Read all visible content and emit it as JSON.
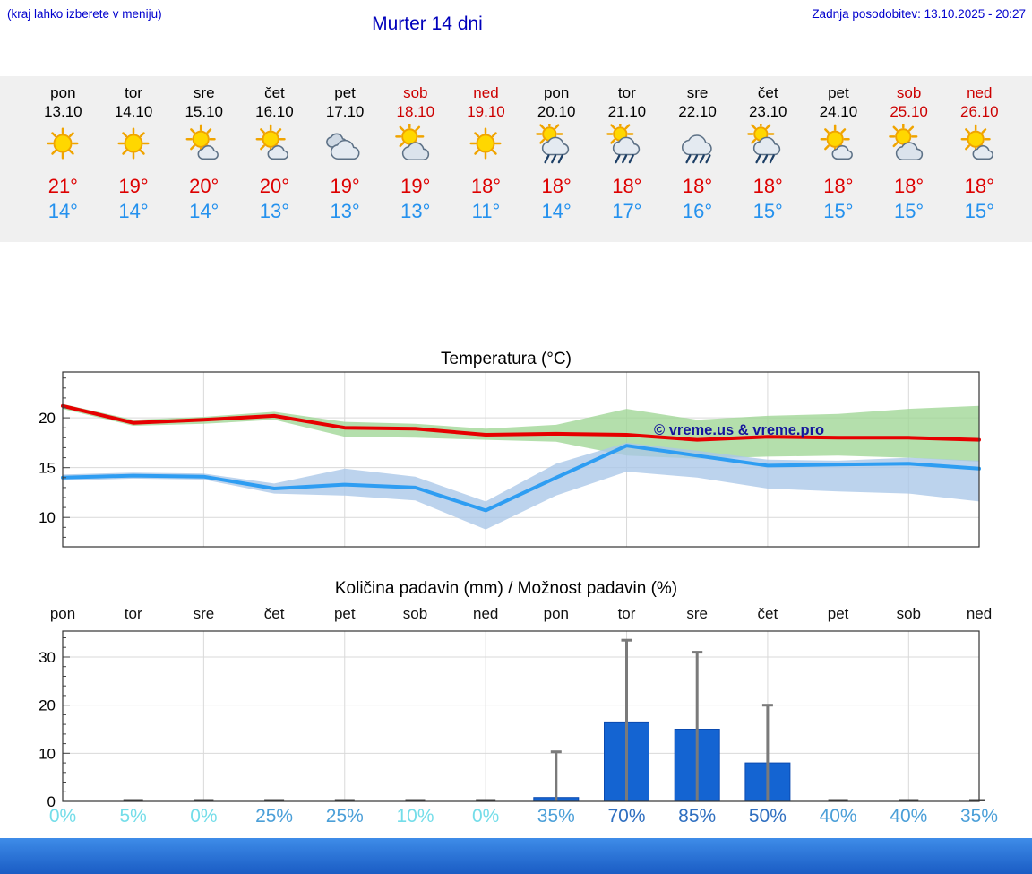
{
  "header": {
    "hint": "(kraj lahko izberete v meniju)",
    "title": "Murter 14 dni",
    "updated": "Zadnja posodobitev: 13.10.2025 - 20:27"
  },
  "forecast": {
    "days": [
      {
        "day": "pon",
        "date": "13.10",
        "weekend": false,
        "icon": "sun",
        "tmax": "21°",
        "tmin": "14°"
      },
      {
        "day": "tor",
        "date": "14.10",
        "weekend": false,
        "icon": "sun",
        "tmax": "19°",
        "tmin": "14°"
      },
      {
        "day": "sre",
        "date": "15.10",
        "weekend": false,
        "icon": "sun-small-cloud",
        "tmax": "20°",
        "tmin": "14°"
      },
      {
        "day": "čet",
        "date": "16.10",
        "weekend": false,
        "icon": "sun-small-cloud",
        "tmax": "20°",
        "tmin": "13°"
      },
      {
        "day": "pet",
        "date": "17.10",
        "weekend": false,
        "icon": "cloud",
        "tmax": "19°",
        "tmin": "13°"
      },
      {
        "day": "sob",
        "date": "18.10",
        "weekend": true,
        "icon": "sun-cloud",
        "tmax": "19°",
        "tmin": "13°"
      },
      {
        "day": "ned",
        "date": "19.10",
        "weekend": true,
        "icon": "sun",
        "tmax": "18°",
        "tmin": "11°"
      },
      {
        "day": "pon",
        "date": "20.10",
        "weekend": false,
        "icon": "sun-cloud-rain",
        "tmax": "18°",
        "tmin": "14°"
      },
      {
        "day": "tor",
        "date": "21.10",
        "weekend": false,
        "icon": "sun-cloud-rain",
        "tmax": "18°",
        "tmin": "17°"
      },
      {
        "day": "sre",
        "date": "22.10",
        "weekend": false,
        "icon": "cloud-rain",
        "tmax": "18°",
        "tmin": "16°"
      },
      {
        "day": "čet",
        "date": "23.10",
        "weekend": false,
        "icon": "sun-cloud-rain",
        "tmax": "18°",
        "tmin": "15°"
      },
      {
        "day": "pet",
        "date": "24.10",
        "weekend": false,
        "icon": "sun-small-cloud",
        "tmax": "18°",
        "tmin": "15°"
      },
      {
        "day": "sob",
        "date": "25.10",
        "weekend": true,
        "icon": "sun-cloud",
        "tmax": "18°",
        "tmin": "15°"
      },
      {
        "day": "ned",
        "date": "26.10",
        "weekend": true,
        "icon": "sun-small-cloud",
        "tmax": "18°",
        "tmin": "15°"
      }
    ]
  },
  "chart_data": [
    {
      "type": "line",
      "title": "Temperatura (°C)",
      "categories": [
        "pon",
        "tor",
        "sre",
        "čet",
        "pet",
        "sob",
        "ned",
        "pon",
        "tor",
        "sre",
        "čet",
        "pet",
        "sob",
        "ned"
      ],
      "ylim": [
        7.05,
        24.6
      ],
      "yticks": [
        10,
        15,
        20
      ],
      "grid_day_indices": [
        2,
        4,
        6,
        8,
        10,
        12
      ],
      "watermark": "© vreme.us & vreme.pro",
      "watermark_color": "#16169c",
      "series": [
        {
          "name": "max",
          "color": "#e60000",
          "values": [
            21.2,
            19.5,
            19.8,
            20.2,
            19.0,
            18.9,
            18.3,
            18.4,
            18.3,
            17.8,
            18.1,
            18.0,
            18.0,
            17.8
          ],
          "band": {
            "color": "#9fd695",
            "low": [
              20.9,
              19.2,
              19.4,
              19.8,
              18.1,
              18.0,
              17.8,
              17.6,
              16.2,
              15.9,
              16.1,
              16.2,
              16.0,
              15.6
            ],
            "high": [
              21.4,
              19.8,
              20.1,
              20.6,
              19.6,
              19.4,
              18.9,
              19.3,
              20.9,
              19.8,
              20.2,
              20.4,
              20.9,
              21.2
            ]
          }
        },
        {
          "name": "min",
          "color": "#2e9df2",
          "values": [
            14.0,
            14.2,
            14.1,
            12.9,
            13.3,
            13.0,
            10.7,
            14.0,
            17.2,
            16.2,
            15.2,
            15.3,
            15.4,
            14.9
          ],
          "band": {
            "color": "#a9c6e8",
            "low": [
              13.7,
              13.9,
              13.8,
              12.4,
              12.2,
              11.7,
              8.8,
              12.2,
              14.6,
              14.0,
              12.9,
              12.6,
              12.4,
              11.6
            ],
            "high": [
              14.3,
              14.5,
              14.4,
              13.4,
              14.9,
              14.1,
              11.6,
              15.4,
              17.5,
              16.7,
              15.8,
              15.7,
              16.0,
              15.7
            ]
          }
        }
      ]
    },
    {
      "type": "bar",
      "title": "Količina padavin (mm) / Možnost padavin (%)",
      "categories": [
        "pon",
        "tor",
        "sre",
        "čet",
        "pet",
        "sob",
        "ned",
        "pon",
        "tor",
        "sre",
        "čet",
        "pet",
        "sob",
        "ned"
      ],
      "values": [
        0,
        0.1,
        0.1,
        0.1,
        0.1,
        0.1,
        0.05,
        0.8,
        16.5,
        15,
        8,
        0.1,
        0.1,
        0.1
      ],
      "whiskers": [
        0,
        0,
        0,
        0,
        0,
        0,
        0,
        10.3,
        33.5,
        31,
        20,
        0,
        0,
        0
      ],
      "ylim": [
        0,
        35.4
      ],
      "yticks": [
        0,
        10,
        20,
        30
      ],
      "grid_day_indices": [
        2,
        4,
        6,
        8,
        10,
        12
      ],
      "bar_color": "#1464d2",
      "whisker_color": "#7a7a7a",
      "prob_labels": [
        "0%",
        "5%",
        "0%",
        "25%",
        "25%",
        "10%",
        "0%",
        "35%",
        "70%",
        "85%",
        "50%",
        "40%",
        "40%",
        "35%"
      ],
      "prob_colors": [
        "#74dde9",
        "#74dde9",
        "#74dde9",
        "#4b9fd8",
        "#4b9fd8",
        "#74dde9",
        "#74dde9",
        "#4b9fd8",
        "#2f6fc0",
        "#2f6fc0",
        "#2f6fc0",
        "#4b9fd8",
        "#4b9fd8",
        "#4b9fd8"
      ]
    }
  ]
}
